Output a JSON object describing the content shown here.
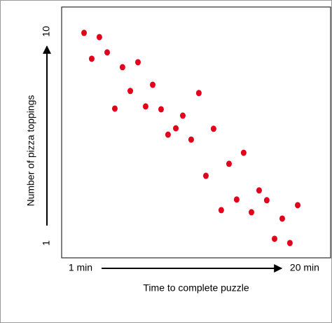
{
  "chart_data": {
    "type": "scatter",
    "x_label": "Time to complete puzzle",
    "y_label": "Number of pizza toppings",
    "x": [
      1.3,
      2.6,
      1.95,
      3.26,
      4.56,
      5.87,
      5.22,
      3.91,
      7.12,
      6.52,
      7.83,
      11.03,
      9.67,
      9.08,
      8.42,
      10.38,
      12.28,
      14.83,
      13.59,
      11.63,
      16.14,
      14.24,
      16.79,
      12.93,
      15.49,
      19.41,
      18.1,
      17.45,
      18.75
    ],
    "values": [
      9.94,
      9.76,
      8.84,
      9.11,
      8.48,
      8.69,
      7.47,
      6.72,
      7.73,
      6.81,
      6.69,
      7.38,
      6.42,
      5.88,
      5.61,
      5.4,
      5.86,
      4.84,
      4.37,
      3.86,
      3.24,
      2.85,
      2.82,
      2.4,
      2.31,
      2.61,
      2.04,
      1.18,
      1.0
    ],
    "color": "#e3001b",
    "xlim": [
      -0.6,
      22.2
    ],
    "ylim": [
      0.37,
      11.04
    ],
    "xticks": [
      {
        "value": 1,
        "label": "1 min"
      },
      {
        "value": 20,
        "label": "20 min"
      }
    ],
    "yticks": [
      1,
      10
    ]
  }
}
